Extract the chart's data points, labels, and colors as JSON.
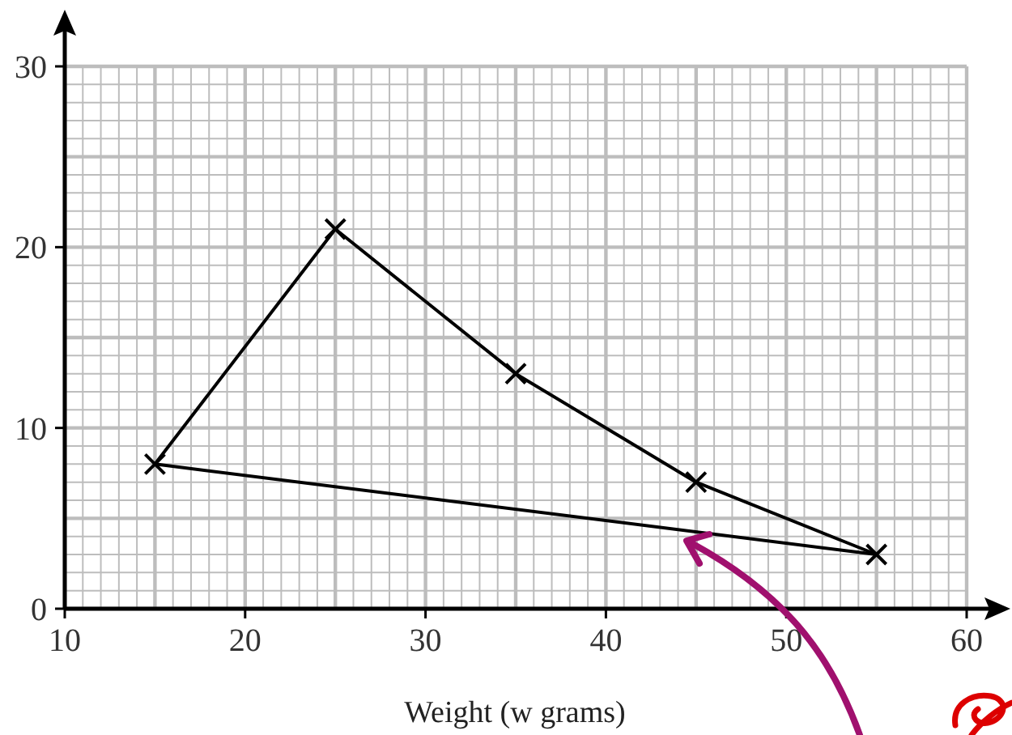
{
  "chart_data": {
    "type": "line",
    "xlabel": "Weight (w grams)",
    "x": [
      15,
      25,
      35,
      45,
      55
    ],
    "series": [
      {
        "color": "#000000",
        "values": [
          8,
          21,
          13,
          7,
          3
        ]
      },
      {
        "color": "#000000",
        "x": [
          15,
          55
        ],
        "values": [
          8,
          3
        ],
        "marker": "none"
      }
    ],
    "xlim": [
      10,
      60
    ],
    "xticks": [
      10,
      20,
      30,
      40,
      50,
      60
    ],
    "ylim": [
      0,
      30
    ],
    "yticks": [
      0,
      10,
      20,
      30
    ],
    "grid": true,
    "marker": "cross",
    "line_style": "solid"
  }
}
